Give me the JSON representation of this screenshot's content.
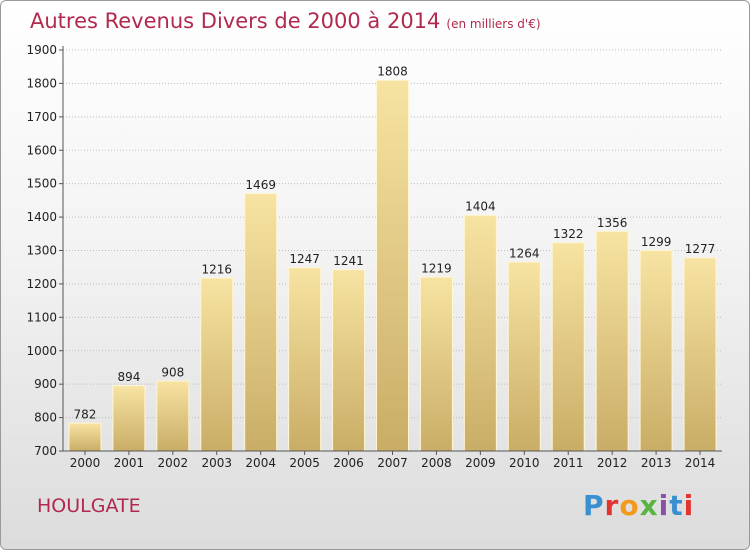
{
  "header": {
    "title": "Autres Revenus Divers de 2000 à 2014",
    "unit_note": "(en milliers d'€)"
  },
  "footer": {
    "city": "HOULGATE",
    "brand": "Proxiti",
    "brand_colors": [
      "#3a8fd0",
      "#e3342f",
      "#f39a1d",
      "#59b540",
      "#8a4fa6",
      "#3a8fd0",
      "#e3342f"
    ]
  },
  "colors": {
    "title": "#b12a4d",
    "bar_light": "#f7e3a2",
    "bar_dark": "#c9ad66"
  },
  "chart_data": {
    "type": "bar",
    "title": "Autres Revenus Divers de 2000 à 2014",
    "subtitle": "(en milliers d'€)",
    "categories": [
      "2000",
      "2001",
      "2002",
      "2003",
      "2004",
      "2005",
      "2006",
      "2007",
      "2008",
      "2009",
      "2010",
      "2011",
      "2012",
      "2013",
      "2014"
    ],
    "values": [
      782,
      894,
      908,
      1216,
      1469,
      1247,
      1241,
      1808,
      1219,
      1404,
      1264,
      1322,
      1356,
      1299,
      1277
    ],
    "ylim": [
      700,
      1900
    ],
    "yticks": [
      700,
      800,
      900,
      1000,
      1100,
      1200,
      1300,
      1400,
      1500,
      1600,
      1700,
      1800,
      1900
    ],
    "grid": true,
    "legend": "none"
  }
}
